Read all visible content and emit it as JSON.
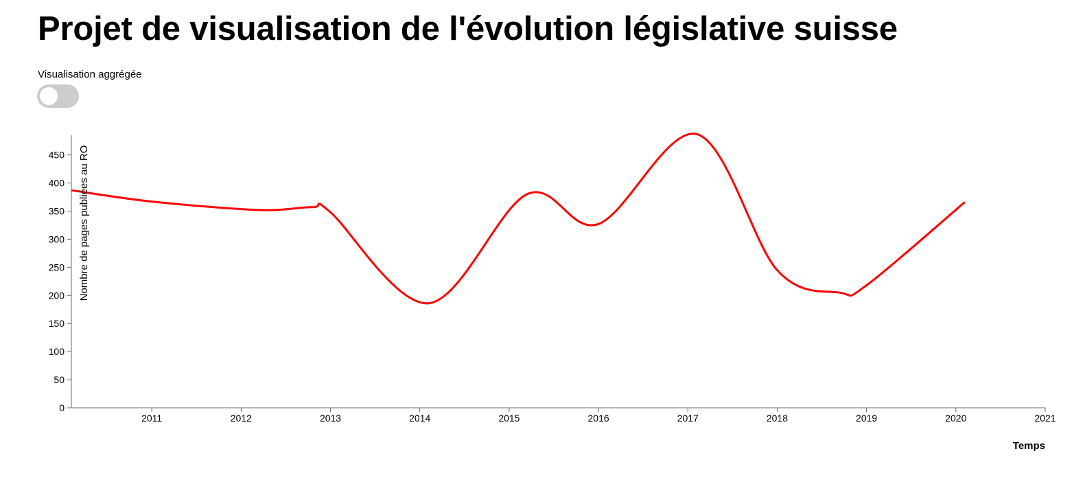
{
  "header": {
    "title": "Projet de visualisation de l'évolution législative suisse"
  },
  "controls": {
    "toggle_label": "Visualisation aggrégée",
    "toggle_on": false
  },
  "chart_data": {
    "type": "line",
    "title": "",
    "xlabel": "Temps",
    "ylabel": "Nombre de pages publiées au RO",
    "x": [
      2010.1,
      2011,
      2012.2,
      2012.8,
      2013,
      2014.1,
      2015.2,
      2016,
      2017.1,
      2018,
      2018.7,
      2019,
      2020.1
    ],
    "values": [
      387,
      367,
      352,
      357,
      348,
      186,
      380,
      327,
      487,
      245,
      205,
      218,
      366
    ],
    "xlim": [
      2010.1,
      2021
    ],
    "ylim": [
      0,
      485
    ],
    "x_ticks": [
      "2011",
      "2012",
      "2013",
      "2014",
      "2015",
      "2016",
      "2017",
      "2018",
      "2019",
      "2020",
      "2021"
    ],
    "y_ticks": [
      "0",
      "50",
      "100",
      "150",
      "200",
      "250",
      "300",
      "350",
      "400",
      "450"
    ],
    "line_color": "#ff0000",
    "axis_color": "#5b6b7a",
    "grid": false
  }
}
